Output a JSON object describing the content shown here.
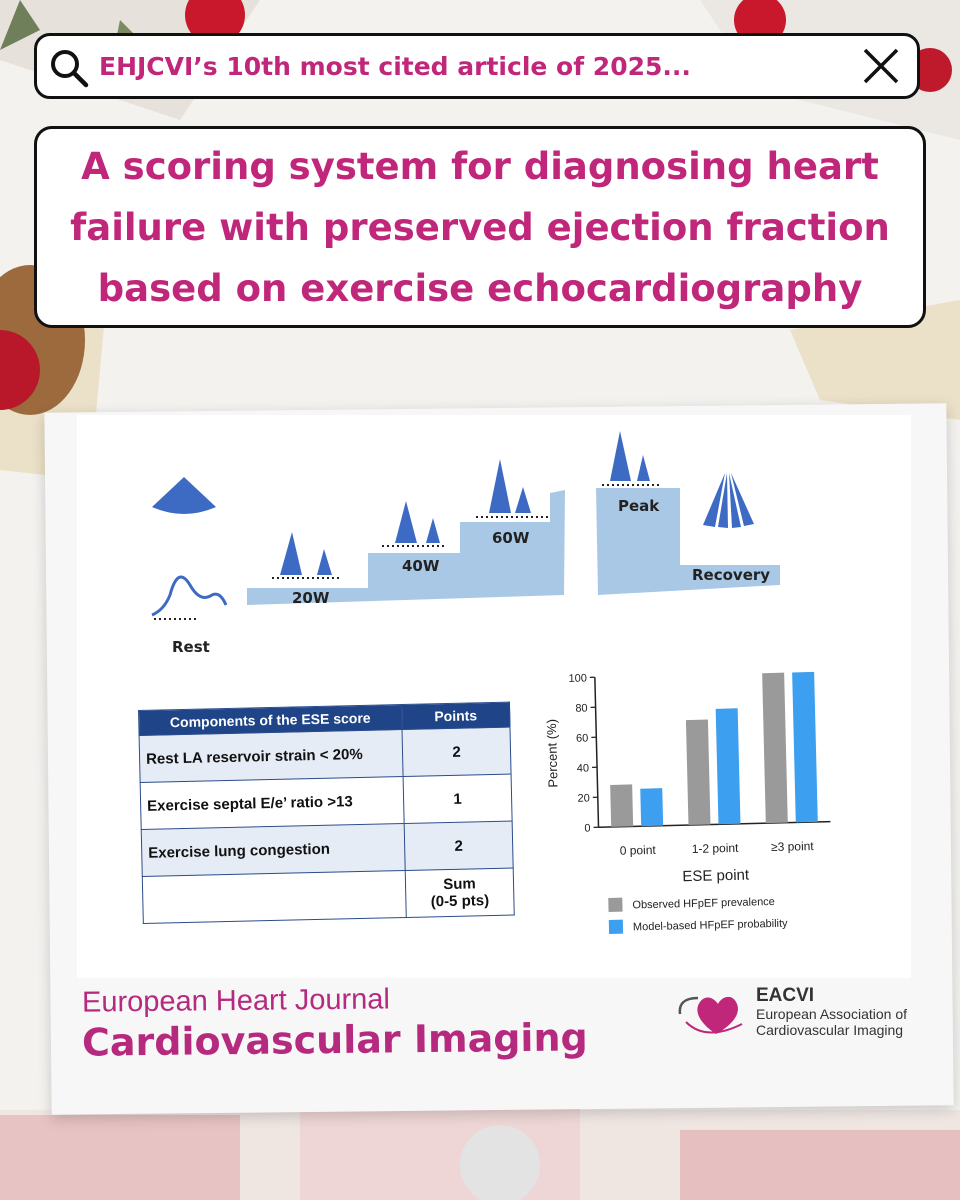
{
  "search": {
    "text": "EHJCVI’s 10th most cited article of 2025..."
  },
  "title": "A scoring system for diagnosing heart failure with preserved ejection fraction based on exercise echocardiography",
  "stages": {
    "rest": "Rest",
    "w20": "20W",
    "w40": "40W",
    "w60": "60W",
    "peak": "Peak",
    "recovery": "Recovery"
  },
  "table": {
    "header": [
      "Components of the ESE score",
      "Points"
    ],
    "rows": [
      {
        "label": "Rest LA reservoir strain < 20%",
        "points": "2"
      },
      {
        "label": "Exercise septal E/e’ ratio >13",
        "points": "1"
      },
      {
        "label": "Exercise lung congestion",
        "points": "2"
      }
    ],
    "sum_label": "Sum",
    "sum_range": "(0-5 pts)"
  },
  "chart_data": {
    "type": "bar",
    "categories": [
      "0 point",
      "1-2 point",
      "≥3 point"
    ],
    "series": [
      {
        "name": "Observed HFpEF prevalence",
        "color": "#9a9a9a",
        "values": [
          28,
          70,
          100
        ]
      },
      {
        "name": "Model-based HFpEF probability",
        "color": "#3d9ff0",
        "values": [
          25,
          77,
          100
        ]
      }
    ],
    "xlabel": "ESE point",
    "ylabel": "Percent (%)",
    "ylim": [
      0,
      100
    ],
    "yticks": [
      "0",
      "20",
      "40",
      "60",
      "80",
      "100"
    ],
    "legend_position": "bottom-left",
    "grid": false
  },
  "journal": {
    "line1": "European Heart Journal",
    "line2": "Cardiovascular Imaging"
  },
  "eacvi": {
    "name": "EACVI",
    "sub": "European Association of Cardiovascular Imaging"
  },
  "colors": {
    "accent": "#c0267a",
    "table_header": "#1f4588",
    "stair": "#a9c8e6",
    "cone": "#3d6bc4"
  }
}
